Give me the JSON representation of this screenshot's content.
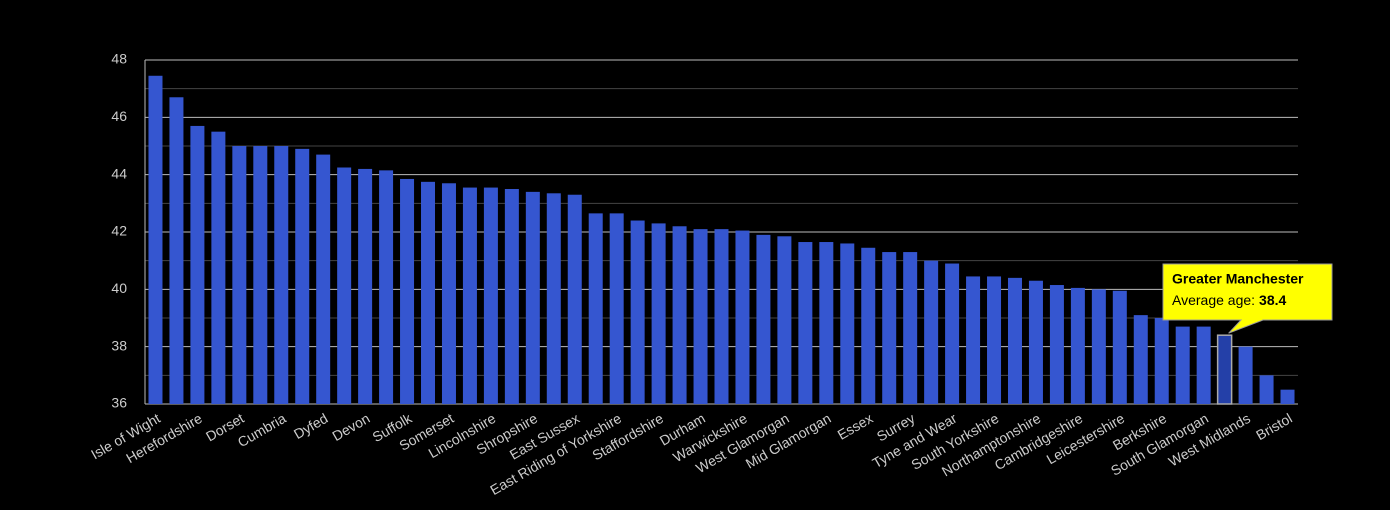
{
  "chart_data": {
    "type": "bar",
    "categories": [
      "Isle of Wight",
      null,
      "Herefordshire",
      null,
      "Dorset",
      null,
      "Cumbria",
      null,
      "Dyfed",
      null,
      "Devon",
      null,
      "Suffolk",
      null,
      "Somerset",
      null,
      "Lincolnshire",
      null,
      "Shropshire",
      null,
      "East Sussex",
      null,
      "East Riding of Yorkshire",
      null,
      "Staffordshire",
      null,
      "Durham",
      null,
      "Warwickshire",
      null,
      "West Glamorgan",
      null,
      "Mid Glamorgan",
      null,
      "Essex",
      null,
      "Surrey",
      null,
      "Tyne and Wear",
      null,
      "South Yorkshire",
      null,
      "Northamptonshire",
      null,
      "Cambridgeshire",
      null,
      "Leicestershire",
      null,
      "Berkshire",
      null,
      "South Glamorgan",
      null,
      "West Midlands",
      null,
      "Bristol"
    ],
    "values": [
      47.45,
      46.7,
      45.7,
      45.5,
      45.0,
      45.0,
      45.0,
      44.9,
      44.7,
      44.25,
      44.2,
      44.15,
      43.85,
      43.75,
      43.7,
      43.55,
      43.55,
      43.5,
      43.4,
      43.35,
      43.3,
      42.65,
      42.65,
      42.4,
      42.3,
      42.2,
      42.1,
      42.1,
      42.05,
      41.9,
      41.85,
      41.65,
      41.65,
      41.6,
      41.45,
      41.3,
      41.3,
      41.0,
      40.9,
      40.45,
      40.45,
      40.4,
      40.3,
      40.15,
      40.05,
      40.0,
      39.95,
      39.1,
      39.0,
      38.7,
      38.7,
      38.4,
      38.0,
      37.0,
      36.5
    ],
    "color": "#3556d0",
    "highlight_color": "#2440a8",
    "highlight_index": 51,
    "tooltip": {
      "title": "Greater Manchester",
      "label": "Average age:"
    },
    "ylim": [
      36,
      48
    ],
    "yticks": [
      36,
      38,
      40,
      42,
      44,
      46,
      48
    ],
    "minor_yticks": [
      37,
      39,
      41,
      43,
      45,
      47
    ],
    "grid": true
  }
}
